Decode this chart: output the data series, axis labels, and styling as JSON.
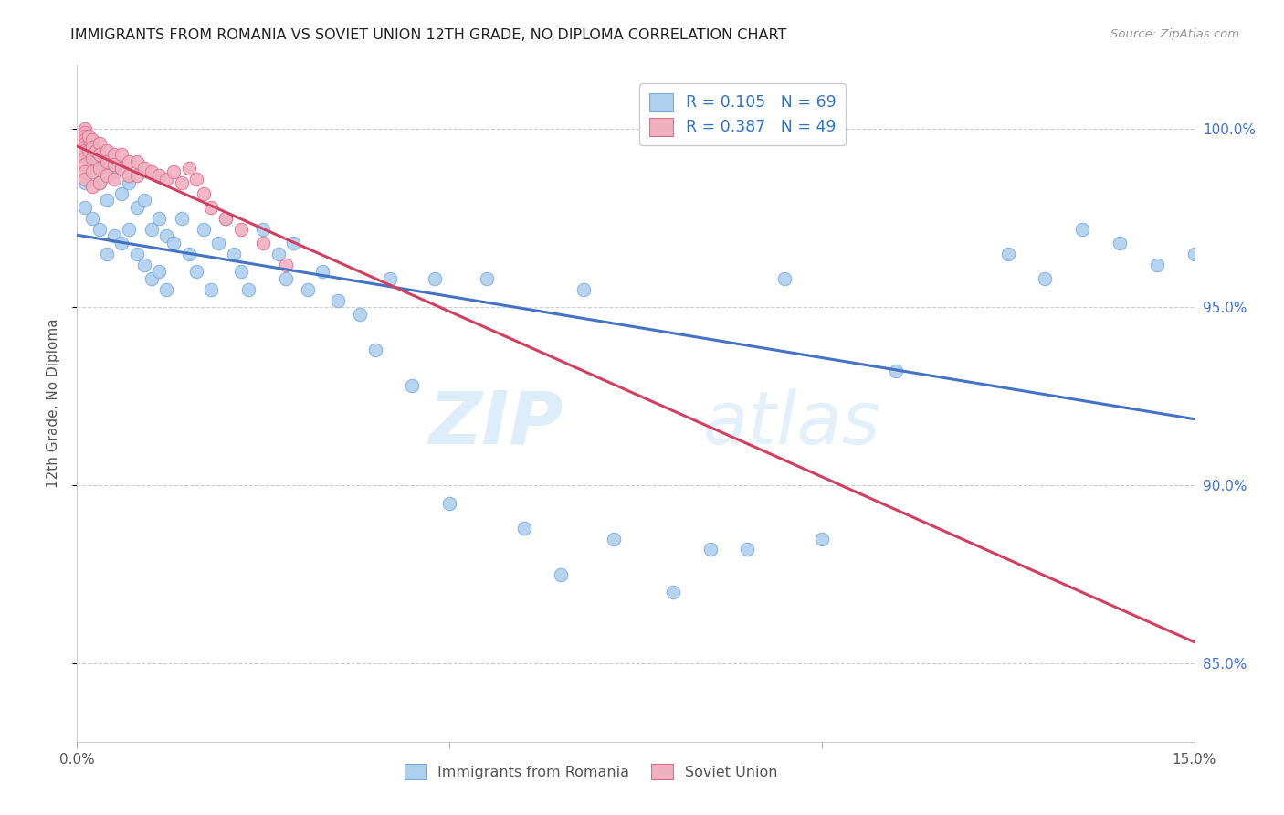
{
  "title": "IMMIGRANTS FROM ROMANIA VS SOVIET UNION 12TH GRADE, NO DIPLOMA CORRELATION CHART",
  "source": "Source: ZipAtlas.com",
  "ylabel": "12th Grade, No Diploma",
  "ytick_values": [
    0.85,
    0.9,
    0.95,
    1.0
  ],
  "xlim": [
    0.0,
    0.15
  ],
  "ylim": [
    0.828,
    1.018
  ],
  "watermark_zip": "ZIP",
  "watermark_atlas": "atlas",
  "romania_color": "#aecfee",
  "romania_edge": "#7aaad8",
  "soviet_color": "#f0b0c0",
  "soviet_edge": "#d87090",
  "regression_romania_color": "#4472c4",
  "regression_soviet_color": "#d04060",
  "romania_R": 0.105,
  "romania_N": 69,
  "soviet_R": 0.387,
  "soviet_N": 49,
  "romania_x": [
    0.001,
    0.001,
    0.001,
    0.0015,
    0.002,
    0.002,
    0.0025,
    0.003,
    0.003,
    0.0035,
    0.004,
    0.004,
    0.005,
    0.005,
    0.006,
    0.006,
    0.007,
    0.007,
    0.008,
    0.008,
    0.009,
    0.009,
    0.01,
    0.01,
    0.011,
    0.011,
    0.012,
    0.012,
    0.013,
    0.014,
    0.015,
    0.016,
    0.017,
    0.018,
    0.019,
    0.02,
    0.021,
    0.022,
    0.023,
    0.025,
    0.027,
    0.028,
    0.029,
    0.031,
    0.033,
    0.035,
    0.038,
    0.04,
    0.042,
    0.045,
    0.048,
    0.05,
    0.055,
    0.06,
    0.065,
    0.068,
    0.072,
    0.08,
    0.085,
    0.09,
    0.095,
    0.1,
    0.11,
    0.125,
    0.13,
    0.135,
    0.14,
    0.145,
    0.15
  ],
  "romania_y": [
    0.993,
    0.985,
    0.978,
    0.997,
    0.99,
    0.975,
    0.993,
    0.985,
    0.972,
    0.99,
    0.98,
    0.965,
    0.988,
    0.97,
    0.982,
    0.968,
    0.985,
    0.972,
    0.978,
    0.965,
    0.98,
    0.962,
    0.972,
    0.958,
    0.975,
    0.96,
    0.97,
    0.955,
    0.968,
    0.975,
    0.965,
    0.96,
    0.972,
    0.955,
    0.968,
    0.975,
    0.965,
    0.96,
    0.955,
    0.972,
    0.965,
    0.958,
    0.968,
    0.955,
    0.96,
    0.952,
    0.948,
    0.938,
    0.958,
    0.928,
    0.958,
    0.895,
    0.958,
    0.888,
    0.875,
    0.955,
    0.885,
    0.87,
    0.882,
    0.882,
    0.958,
    0.885,
    0.932,
    0.965,
    0.958,
    0.972,
    0.968,
    0.962,
    0.965
  ],
  "soviet_x": [
    0.001,
    0.001,
    0.001,
    0.001,
    0.001,
    0.001,
    0.001,
    0.001,
    0.001,
    0.001,
    0.001,
    0.0015,
    0.0015,
    0.002,
    0.002,
    0.002,
    0.002,
    0.002,
    0.0025,
    0.003,
    0.003,
    0.003,
    0.003,
    0.004,
    0.004,
    0.004,
    0.005,
    0.005,
    0.005,
    0.006,
    0.006,
    0.007,
    0.007,
    0.008,
    0.008,
    0.009,
    0.01,
    0.011,
    0.012,
    0.013,
    0.014,
    0.015,
    0.016,
    0.017,
    0.018,
    0.02,
    0.022,
    0.025,
    0.028
  ],
  "soviet_y": [
    1.0,
    0.999,
    0.998,
    0.997,
    0.996,
    0.995,
    0.994,
    0.992,
    0.99,
    0.988,
    0.986,
    0.998,
    0.994,
    0.997,
    0.995,
    0.992,
    0.988,
    0.984,
    0.994,
    0.996,
    0.993,
    0.989,
    0.985,
    0.994,
    0.991,
    0.987,
    0.993,
    0.99,
    0.986,
    0.993,
    0.989,
    0.991,
    0.987,
    0.991,
    0.987,
    0.989,
    0.988,
    0.987,
    0.986,
    0.988,
    0.985,
    0.989,
    0.986,
    0.982,
    0.978,
    0.975,
    0.972,
    0.968,
    0.962
  ]
}
